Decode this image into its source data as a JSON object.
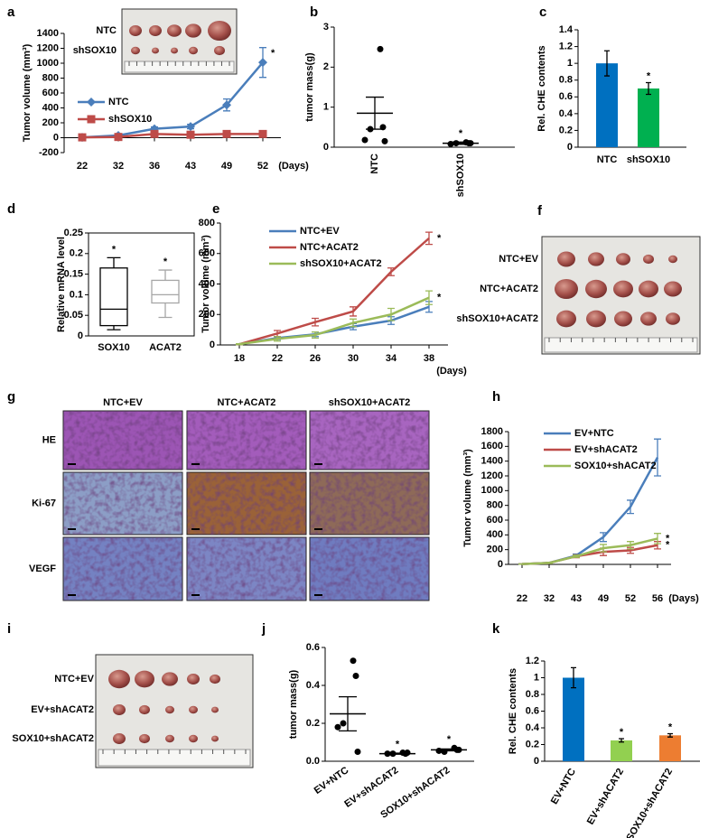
{
  "chart_data": [
    {
      "type": "line",
      "label": "a",
      "ylabel": "Tumor volume (mm³)",
      "xlabel": "(Days)",
      "categories": [
        "22",
        "32",
        "36",
        "43",
        "49",
        "52"
      ],
      "ylim": [
        -200,
        1400
      ],
      "yticks": [
        -200,
        0,
        200,
        400,
        600,
        800,
        1000,
        1200,
        1400
      ],
      "legend": "upper left",
      "series": [
        {
          "name": "NTC",
          "color": "#4a7ebb",
          "marker": "diamond",
          "values": [
            5,
            30,
            120,
            150,
            440,
            1010
          ],
          "errors": [
            5,
            15,
            25,
            30,
            80,
            200
          ],
          "annotation": "*"
        },
        {
          "name": "shSOX10",
          "color": "#be4b48",
          "marker": "square",
          "values": [
            5,
            10,
            50,
            40,
            50,
            50
          ],
          "errors": [
            3,
            5,
            10,
            10,
            15,
            40
          ]
        }
      ]
    },
    {
      "type": "dot",
      "label": "b",
      "ylabel": "tumor mass(g)",
      "categories": [
        "NTC",
        "shSOX10"
      ],
      "ylim": [
        0,
        3
      ],
      "yticks": [
        0,
        1,
        2,
        3
      ],
      "points": [
        [
          2.45,
          0.5,
          0.45,
          0.18,
          0.15
        ],
        [
          0.12,
          0.1,
          0.1,
          0.08,
          0.1
        ]
      ],
      "values": [
        0.85,
        0.1
      ],
      "errors": [
        0.4,
        0.03
      ],
      "annotations": [
        null,
        "*"
      ],
      "color": "#000000"
    },
    {
      "type": "bar",
      "label": "c",
      "ylabel": "Rel. CHE contents",
      "categories": [
        "NTC",
        "shSOX10"
      ],
      "values": [
        1,
        0.7
      ],
      "errors": [
        0.15,
        0.07
      ],
      "colors": [
        "#0070c0",
        "#00b050"
      ],
      "ylim": [
        0,
        1.4
      ],
      "yticks": [
        0,
        0.2,
        0.4,
        0.6,
        0.8,
        1,
        1.2,
        1.4
      ],
      "annotations": [
        null,
        "*"
      ]
    },
    {
      "type": "box",
      "label": "d",
      "ylabel": "Relative mRNA level",
      "categories": [
        "SOX10",
        "ACAT2"
      ],
      "boxes": [
        {
          "min": 0.015,
          "q1": 0.025,
          "median": 0.065,
          "q3": 0.165,
          "max": 0.19
        },
        {
          "min": 0.045,
          "q1": 0.08,
          "median": 0.1,
          "q3": 0.135,
          "max": 0.16
        }
      ],
      "colors": [
        "#000000",
        "#a6a6a6"
      ],
      "ylim": [
        0,
        0.25
      ],
      "yticks": [
        0,
        0.05,
        0.1,
        0.15,
        0.2,
        0.25
      ],
      "annotations": [
        "*",
        "*"
      ]
    },
    {
      "type": "line",
      "label": "e",
      "ylabel": "Tumor volume (mm³)",
      "xlabel": "(Days)",
      "categories": [
        "18",
        "22",
        "26",
        "30",
        "34",
        "38"
      ],
      "ylim": [
        0,
        800
      ],
      "yticks": [
        0,
        200,
        400,
        600,
        800
      ],
      "legend": "upper left",
      "series": [
        {
          "name": "NTC+EV",
          "color": "#4a7ebb",
          "values": [
            5,
            45,
            70,
            120,
            160,
            250
          ],
          "errors": [
            3,
            10,
            15,
            20,
            25,
            35
          ]
        },
        {
          "name": "NTC+ACAT2",
          "color": "#be4b48",
          "values": [
            5,
            75,
            150,
            220,
            480,
            700
          ],
          "errors": [
            3,
            20,
            25,
            30,
            25,
            40
          ],
          "annotation": "*"
        },
        {
          "name": "shSOX10+ACAT2",
          "color": "#9bbb59",
          "values": [
            5,
            40,
            65,
            145,
            200,
            310
          ],
          "errors": [
            3,
            15,
            20,
            25,
            40,
            45
          ],
          "annotation": "*"
        }
      ]
    },
    {
      "type": "line",
      "label": "h",
      "ylabel": "Tumor volume (mm³)",
      "xlabel": "(Days)",
      "categories": [
        "22",
        "32",
        "43",
        "49",
        "52",
        "56"
      ],
      "ylim": [
        0,
        1800
      ],
      "yticks": [
        0,
        200,
        400,
        600,
        800,
        1000,
        1200,
        1400,
        1600,
        1800
      ],
      "legend": "upper left",
      "series": [
        {
          "name": "EV+NTC",
          "color": "#4a7ebb",
          "values": [
            5,
            20,
            120,
            370,
            780,
            1450
          ],
          "errors": [
            3,
            8,
            20,
            60,
            90,
            250
          ]
        },
        {
          "name": "EV+shACAT2",
          "color": "#be4b48",
          "values": [
            5,
            20,
            110,
            170,
            190,
            260
          ],
          "errors": [
            3,
            8,
            20,
            50,
            40,
            50
          ],
          "annotation": "*"
        },
        {
          "name": "SOX10+shACAT2",
          "color": "#9bbb59",
          "values": [
            5,
            20,
            110,
            220,
            260,
            350
          ],
          "errors": [
            3,
            8,
            15,
            50,
            50,
            70
          ],
          "annotation": "*"
        }
      ]
    },
    {
      "type": "dot",
      "label": "j",
      "ylabel": "tumor mass(g)",
      "categories": [
        "EV+NTC",
        "EV+shACAT2",
        "SOX10+shACAT2"
      ],
      "ylim": [
        0,
        0.6
      ],
      "yticks": [
        {
          "value": 0,
          "label": "0.0"
        },
        0.2,
        0.4,
        0.6
      ],
      "points": [
        [
          0.53,
          0.45,
          0.2,
          0.18,
          0.05
        ],
        [
          0.045,
          0.04,
          0.04,
          0.04,
          0.045
        ],
        [
          0.07,
          0.06,
          0.05,
          0.055,
          0.06
        ]
      ],
      "values": [
        0.25,
        0.04,
        0.06
      ],
      "errors": [
        0.09,
        0.003,
        0.005
      ],
      "annotations": [
        null,
        "*",
        "*"
      ],
      "color": "#000000"
    },
    {
      "type": "bar",
      "label": "k",
      "ylabel": "Rel. CHE contents",
      "categories": [
        "EV+NTC",
        "EV+shACAT2",
        "SOX10+shACAT2"
      ],
      "values": [
        1,
        0.25,
        0.31
      ],
      "errors": [
        0.12,
        0.02,
        0.02
      ],
      "colors": [
        "#0070c0",
        "#92d050",
        "#ed7d31"
      ],
      "ylim": [
        0,
        1.2
      ],
      "yticks": [
        0,
        0.2,
        0.4,
        0.6,
        0.8,
        1,
        1.2
      ],
      "annotations": [
        null,
        "*",
        "*"
      ]
    }
  ],
  "photos": [
    {
      "rows": [
        "NTC",
        "shSOX10"
      ]
    },
    {
      "label": "f",
      "rows": [
        "NTC+EV",
        "NTC+ACAT2",
        "shSOX10+ACAT2"
      ]
    },
    {
      "label": "i",
      "rows": [
        "NTC+EV",
        "EV+shACAT2",
        "SOX10+shACAT2"
      ]
    }
  ],
  "histology": {
    "label": "g",
    "columns": [
      "NTC+EV",
      "NTC+ACAT2",
      "shSOX10+ACAT2"
    ],
    "rows": [
      "HE",
      "Ki-67",
      "VEGF"
    ]
  }
}
